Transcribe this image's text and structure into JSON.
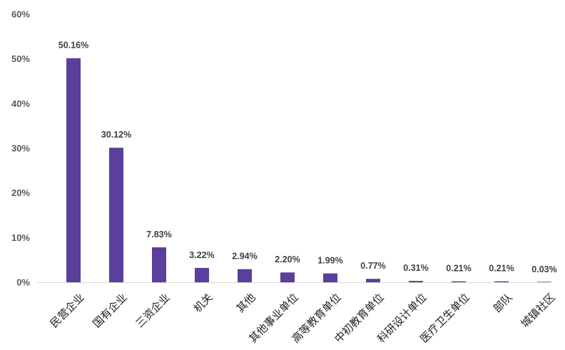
{
  "chart_data": {
    "type": "bar",
    "title": "",
    "xlabel": "",
    "ylabel": "",
    "ylim": [
      0,
      60
    ],
    "yticks": [
      "0%",
      "10%",
      "20%",
      "30%",
      "40%",
      "50%",
      "60%"
    ],
    "ytick_values": [
      0,
      10,
      20,
      30,
      40,
      50,
      60
    ],
    "grid": false,
    "legend": "none",
    "bar_color": "#5b3f9c",
    "categories": [
      "民营企业",
      "国有企业",
      "三资企业",
      "机关",
      "其他",
      "其他事业单位",
      "高等教育单位",
      "中初教育单位",
      "科研设计单位",
      "医疗卫生单位",
      "部队",
      "城镇社区"
    ],
    "values": [
      50.16,
      30.12,
      7.83,
      3.22,
      2.94,
      2.2,
      1.99,
      0.77,
      0.31,
      0.21,
      0.21,
      0.03
    ],
    "value_labels": [
      "50.16%",
      "30.12%",
      "7.83%",
      "3.22%",
      "2.94%",
      "2.20%",
      "1.99%",
      "0.77%",
      "0.31%",
      "0.21%",
      "0.21%",
      "0.03%"
    ]
  }
}
